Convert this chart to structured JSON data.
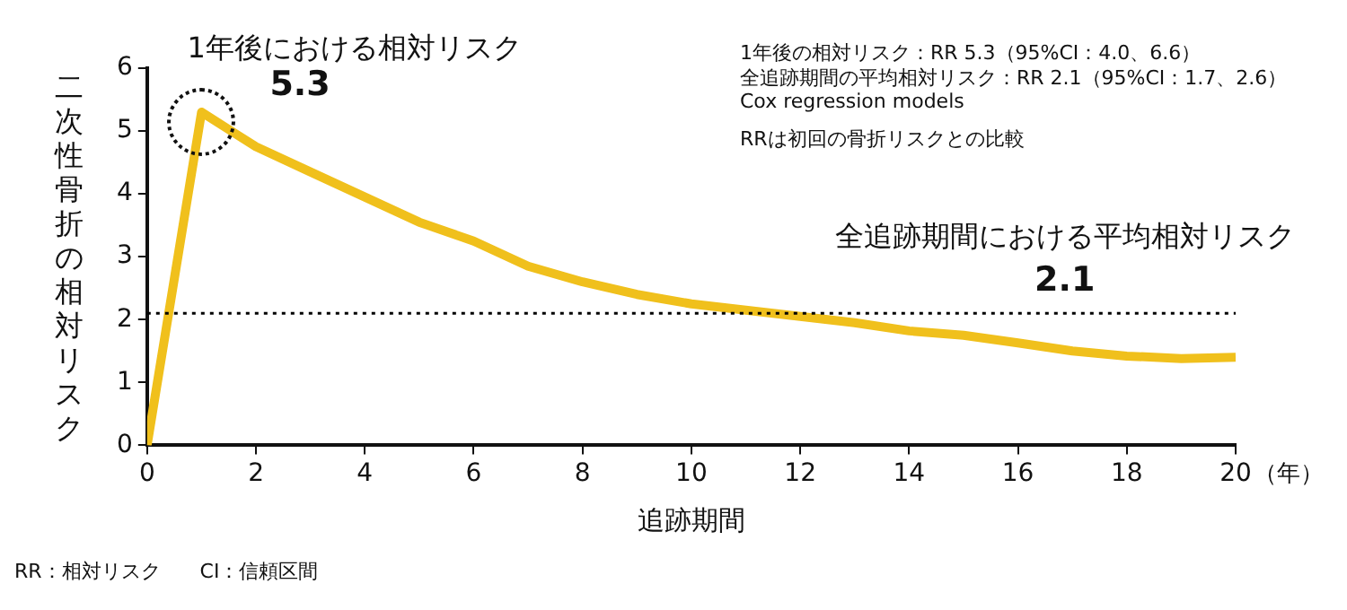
{
  "chart_data": {
    "type": "line",
    "xlabel": "追跡期間",
    "ylabel": "二次性骨折の相対リスク",
    "x": [
      0,
      1,
      2,
      3,
      4,
      5,
      6,
      7,
      8,
      9,
      10,
      11,
      12,
      13,
      14,
      15,
      16,
      17,
      18,
      19,
      20
    ],
    "series": [
      {
        "color": "#f0c01c",
        "values": [
          0,
          5.3,
          4.75,
          4.35,
          3.95,
          3.55,
          3.25,
          2.85,
          2.6,
          2.4,
          2.25,
          2.15,
          2.05,
          1.95,
          1.82,
          1.75,
          1.63,
          1.5,
          1.42,
          1.38,
          1.4
        ]
      }
    ],
    "xlim": [
      0,
      20
    ],
    "xticks": [
      0,
      2,
      4,
      6,
      8,
      10,
      12,
      14,
      16,
      18,
      20
    ],
    "ylim": [
      0,
      6
    ],
    "yticks": [
      0,
      1,
      2,
      3,
      4,
      5,
      6
    ],
    "marker": "none",
    "line_style": "solid",
    "legend": false,
    "ref_lines": [
      {
        "axis": "y",
        "value": 2.1,
        "label": "全追跡期間における平均相対リスク",
        "color": "#000000",
        "line_style": "dotted"
      }
    ],
    "annotations": [
      {
        "text": "1年後における相対リスク",
        "x": 1,
        "y": 5.3
      },
      {
        "text": "5.3",
        "x": 1,
        "y": 5.3
      },
      "2.1",
      "（年）",
      "1年後の相対リスク：RR 5.3（95%CI：4.0、6.6）",
      "全追跡期間の平均相対リスク：RR 2.1（95%CI：1.7、2.6）",
      "Cox regression models",
      "RRは初回の骨折リスクとの比較",
      "RR：相対リスク　　CI：信頼区間"
    ]
  }
}
